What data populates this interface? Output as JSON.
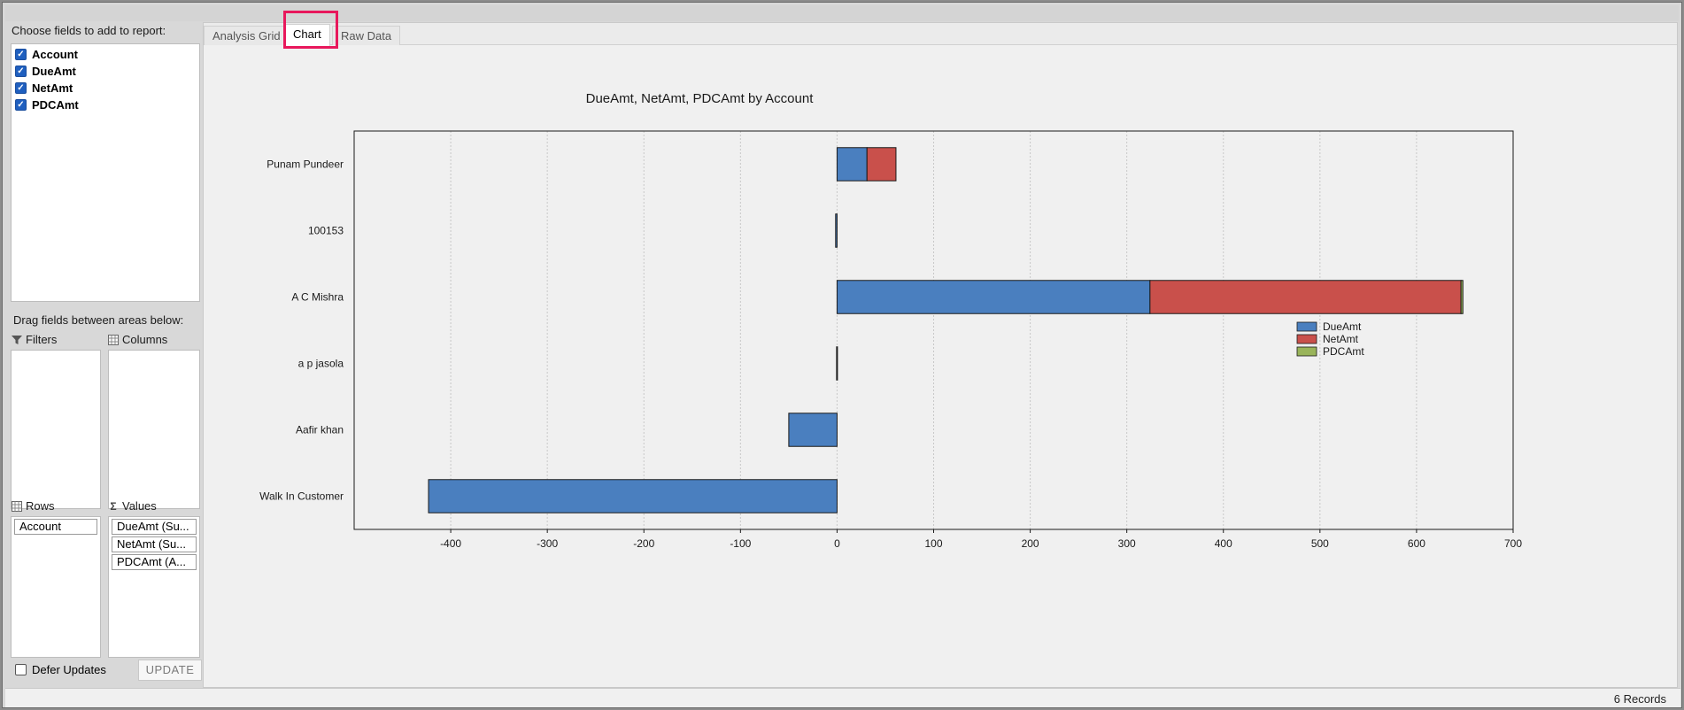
{
  "left_panel": {
    "choose_label": "Choose fields to add to report:",
    "fields": [
      {
        "label": "Account",
        "checked": true
      },
      {
        "label": "DueAmt",
        "checked": true
      },
      {
        "label": "NetAmt",
        "checked": true
      },
      {
        "label": "PDCAmt",
        "checked": true
      }
    ],
    "drag_label": "Drag fields between areas below:",
    "areas": {
      "filters": {
        "label": "Filters",
        "icon": "filter-icon",
        "items": []
      },
      "columns": {
        "label": "Columns",
        "icon": "columns-grid-icon",
        "items": []
      },
      "rows": {
        "label": "Rows",
        "icon": "rows-grid-icon",
        "items": [
          "Account"
        ]
      },
      "values": {
        "label": "Values",
        "icon": "sigma-icon",
        "items": [
          "DueAmt (Su...",
          "NetAmt (Su...",
          "PDCAmt (A..."
        ]
      }
    },
    "defer_label": "Defer Updates",
    "defer_checked": false,
    "update_label": "UPDATE"
  },
  "tabs": [
    {
      "label": "Analysis Grid",
      "active": false
    },
    {
      "label": "Chart",
      "active": true
    },
    {
      "label": "Raw Data",
      "active": false
    }
  ],
  "status": {
    "records": "6 Records"
  },
  "chart_data": {
    "type": "bar",
    "orientation": "horizontal",
    "stacked": true,
    "title": "DueAmt, NetAmt, PDCAmt by Account",
    "categories": [
      "Punam Pundeer",
      "100153",
      "A C Mishra",
      "a p jasola",
      "Aafir khan",
      "Walk In Customer"
    ],
    "series": [
      {
        "name": "DueAmt",
        "color": "#4a7fbf",
        "values": [
          31,
          -1.5,
          324,
          -0.5,
          -50,
          -423
        ]
      },
      {
        "name": "NetAmt",
        "color": "#c9504b",
        "values": [
          30,
          0,
          322,
          0,
          0,
          0
        ]
      },
      {
        "name": "PDCAmt",
        "color": "#99b45a",
        "values": [
          0,
          0,
          2,
          0,
          0,
          0
        ]
      }
    ],
    "xlim": [
      -500,
      700
    ],
    "xticks": [
      -400,
      -300,
      -200,
      -100,
      0,
      100,
      200,
      300,
      400,
      500,
      600,
      700
    ],
    "grid": true,
    "legend": "right"
  }
}
